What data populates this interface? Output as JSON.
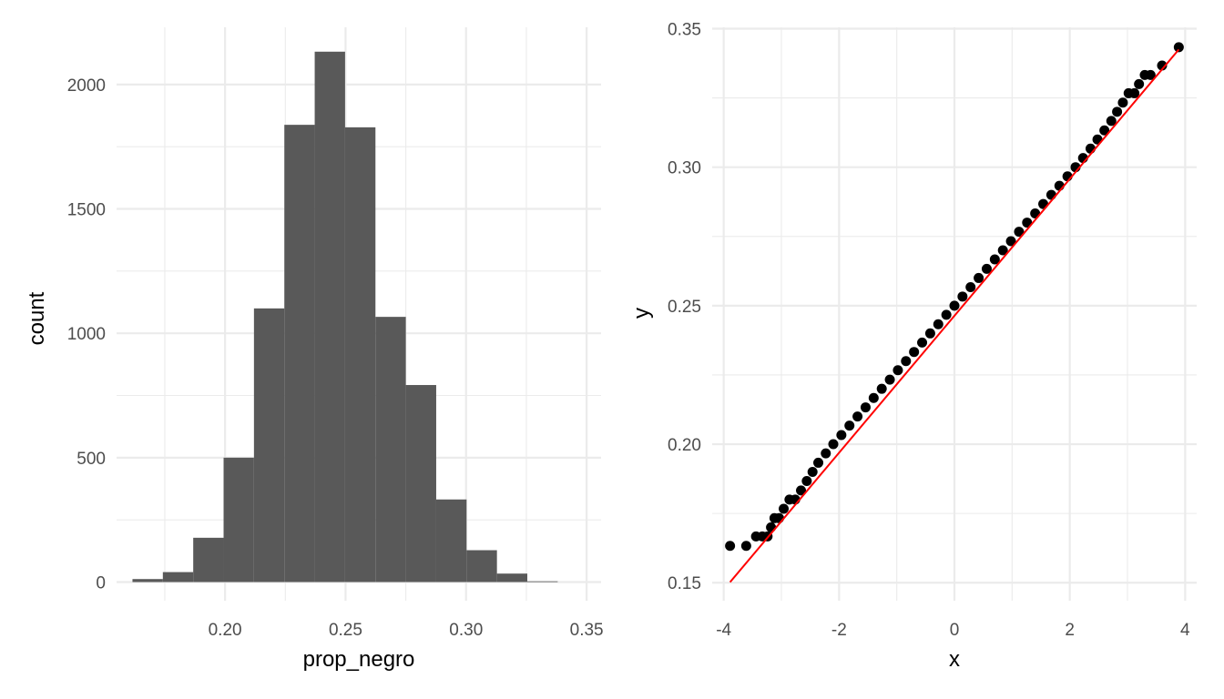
{
  "chart_data": [
    {
      "type": "bar",
      "subtype": "histogram",
      "xlabel": "prop_negro",
      "ylabel": "count",
      "xlim": [
        0.155,
        0.356
      ],
      "ylim": [
        -75,
        2230
      ],
      "x_ticks": [
        0.2,
        0.25,
        0.3,
        0.35
      ],
      "x_tick_labels": [
        "0.20",
        "0.25",
        "0.30",
        "0.35"
      ],
      "y_ticks": [
        0,
        500,
        1000,
        1500,
        2000
      ],
      "y_tick_labels": [
        "0",
        "500",
        "1000",
        "1500",
        "2000"
      ],
      "bin_width": 0.0126,
      "bins": [
        {
          "start": 0.1616,
          "end": 0.1742,
          "count": 12
        },
        {
          "start": 0.1742,
          "end": 0.1868,
          "count": 40
        },
        {
          "start": 0.1868,
          "end": 0.1994,
          "count": 178
        },
        {
          "start": 0.1994,
          "end": 0.212,
          "count": 500
        },
        {
          "start": 0.212,
          "end": 0.2246,
          "count": 1100
        },
        {
          "start": 0.2246,
          "end": 0.2372,
          "count": 1838
        },
        {
          "start": 0.2372,
          "end": 0.2498,
          "count": 2132
        },
        {
          "start": 0.2498,
          "end": 0.2624,
          "count": 1828
        },
        {
          "start": 0.2624,
          "end": 0.275,
          "count": 1066
        },
        {
          "start": 0.275,
          "end": 0.2876,
          "count": 792
        },
        {
          "start": 0.2876,
          "end": 0.3002,
          "count": 332
        },
        {
          "start": 0.3002,
          "end": 0.3128,
          "count": 128
        },
        {
          "start": 0.3128,
          "end": 0.3254,
          "count": 34
        },
        {
          "start": 0.3254,
          "end": 0.338,
          "count": 3
        }
      ],
      "fill_color": "#595959",
      "grid": true
    },
    {
      "type": "scatter",
      "subtype": "qq-plot",
      "xlabel": "x",
      "ylabel": "y",
      "xlim": [
        -4.2,
        4.2
      ],
      "ylim": [
        0.1435,
        0.3505
      ],
      "x_ticks": [
        -4,
        -2,
        0,
        2,
        4
      ],
      "x_tick_labels": [
        "-4",
        "-2",
        "0",
        "2",
        "4"
      ],
      "y_ticks": [
        0.15,
        0.2,
        0.25,
        0.3,
        0.35
      ],
      "y_tick_labels": [
        "0.15",
        "0.20",
        "0.25",
        "0.30",
        "0.35"
      ],
      "points": [
        [
          -3.89,
          0.1633
        ],
        [
          -3.61,
          0.1633
        ],
        [
          -3.44,
          0.1667
        ],
        [
          -3.33,
          0.1667
        ],
        [
          -3.24,
          0.1667
        ],
        [
          -3.18,
          0.17
        ],
        [
          -3.12,
          0.1733
        ],
        [
          -3.04,
          0.1733
        ],
        [
          -2.96,
          0.1767
        ],
        [
          -2.86,
          0.18
        ],
        [
          -2.76,
          0.18
        ],
        [
          -2.66,
          0.1833
        ],
        [
          -2.56,
          0.1867
        ],
        [
          -2.46,
          0.19
        ],
        [
          -2.36,
          0.1933
        ],
        [
          -2.23,
          0.1967
        ],
        [
          -2.1,
          0.2
        ],
        [
          -1.96,
          0.2033
        ],
        [
          -1.82,
          0.2067
        ],
        [
          -1.68,
          0.21
        ],
        [
          -1.54,
          0.2133
        ],
        [
          -1.4,
          0.2167
        ],
        [
          -1.26,
          0.22
        ],
        [
          -1.12,
          0.2233
        ],
        [
          -0.98,
          0.2267
        ],
        [
          -0.84,
          0.23
        ],
        [
          -0.7,
          0.2333
        ],
        [
          -0.56,
          0.2367
        ],
        [
          -0.42,
          0.24
        ],
        [
          -0.28,
          0.2433
        ],
        [
          -0.14,
          0.2467
        ],
        [
          0.0,
          0.25
        ],
        [
          0.14,
          0.2533
        ],
        [
          0.28,
          0.2567
        ],
        [
          0.42,
          0.26
        ],
        [
          0.56,
          0.2633
        ],
        [
          0.7,
          0.2667
        ],
        [
          0.84,
          0.27
        ],
        [
          0.98,
          0.2733
        ],
        [
          1.12,
          0.2767
        ],
        [
          1.26,
          0.28
        ],
        [
          1.4,
          0.2833
        ],
        [
          1.54,
          0.2867
        ],
        [
          1.68,
          0.29
        ],
        [
          1.82,
          0.2933
        ],
        [
          1.96,
          0.2967
        ],
        [
          2.1,
          0.3
        ],
        [
          2.23,
          0.3033
        ],
        [
          2.36,
          0.3067
        ],
        [
          2.48,
          0.31
        ],
        [
          2.6,
          0.3133
        ],
        [
          2.72,
          0.3167
        ],
        [
          2.82,
          0.32
        ],
        [
          2.92,
          0.3233
        ],
        [
          3.02,
          0.3267
        ],
        [
          3.12,
          0.3267
        ],
        [
          3.2,
          0.33
        ],
        [
          3.3,
          0.3333
        ],
        [
          3.4,
          0.3333
        ],
        [
          3.6,
          0.3367
        ],
        [
          3.89,
          0.3433
        ]
      ],
      "point_color": "#000000",
      "reference_line": {
        "x": [
          -3.89,
          3.89
        ],
        "y": [
          0.1502,
          0.3425
        ],
        "color": "#ff0000"
      },
      "grid": true
    }
  ]
}
